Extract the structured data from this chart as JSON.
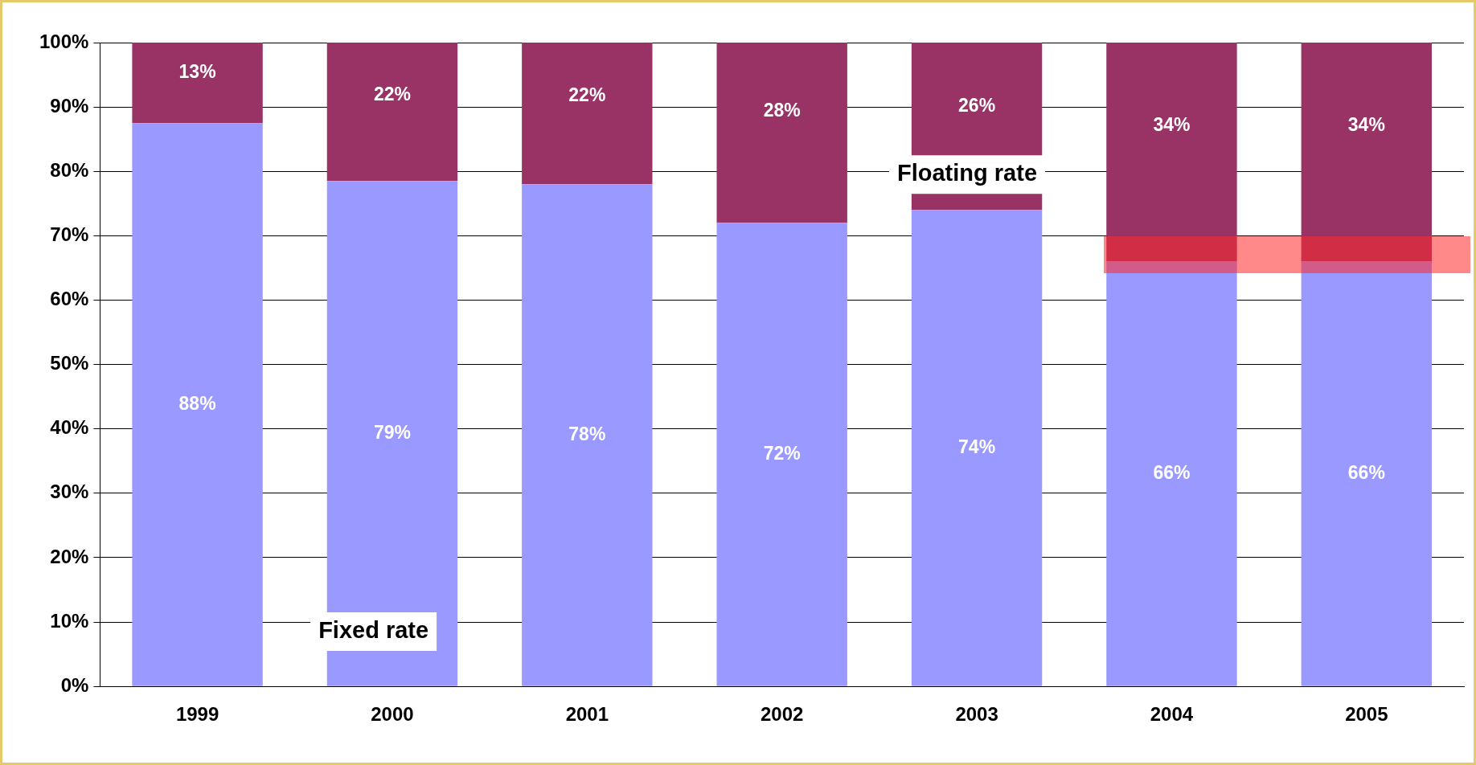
{
  "chart_data": {
    "type": "bar",
    "stacked": true,
    "categories": [
      "1999",
      "2000",
      "2001",
      "2002",
      "2003",
      "2004",
      "2005"
    ],
    "series": [
      {
        "name": "Fixed rate",
        "color": "#9999ff",
        "values": [
          87.5,
          78.5,
          78,
          72,
          74,
          66,
          66
        ],
        "value_labels": [
          "88%",
          "79%",
          "78%",
          "72%",
          "74%",
          "66%",
          "66%"
        ]
      },
      {
        "name": "Floating rate",
        "color": "#993366",
        "values": [
          12.5,
          21.5,
          22,
          28,
          26,
          34,
          34
        ],
        "value_labels": [
          "13%",
          "22%",
          "22%",
          "28%",
          "26%",
          "34%",
          "34%"
        ]
      }
    ],
    "ylim": [
      0,
      100
    ],
    "yticks": [
      {
        "value": 0,
        "label": "0%"
      },
      {
        "value": 10,
        "label": "10%"
      },
      {
        "value": 20,
        "label": "20%"
      },
      {
        "value": 30,
        "label": "30%"
      },
      {
        "value": 40,
        "label": "40%"
      },
      {
        "value": 50,
        "label": "50%"
      },
      {
        "value": 60,
        "label": "60%"
      },
      {
        "value": 70,
        "label": "70%"
      },
      {
        "value": 80,
        "label": "80%"
      },
      {
        "value": 90,
        "label": "90%"
      },
      {
        "value": 100,
        "label": "100%"
      }
    ],
    "grid": "y",
    "legend": false
  }
}
